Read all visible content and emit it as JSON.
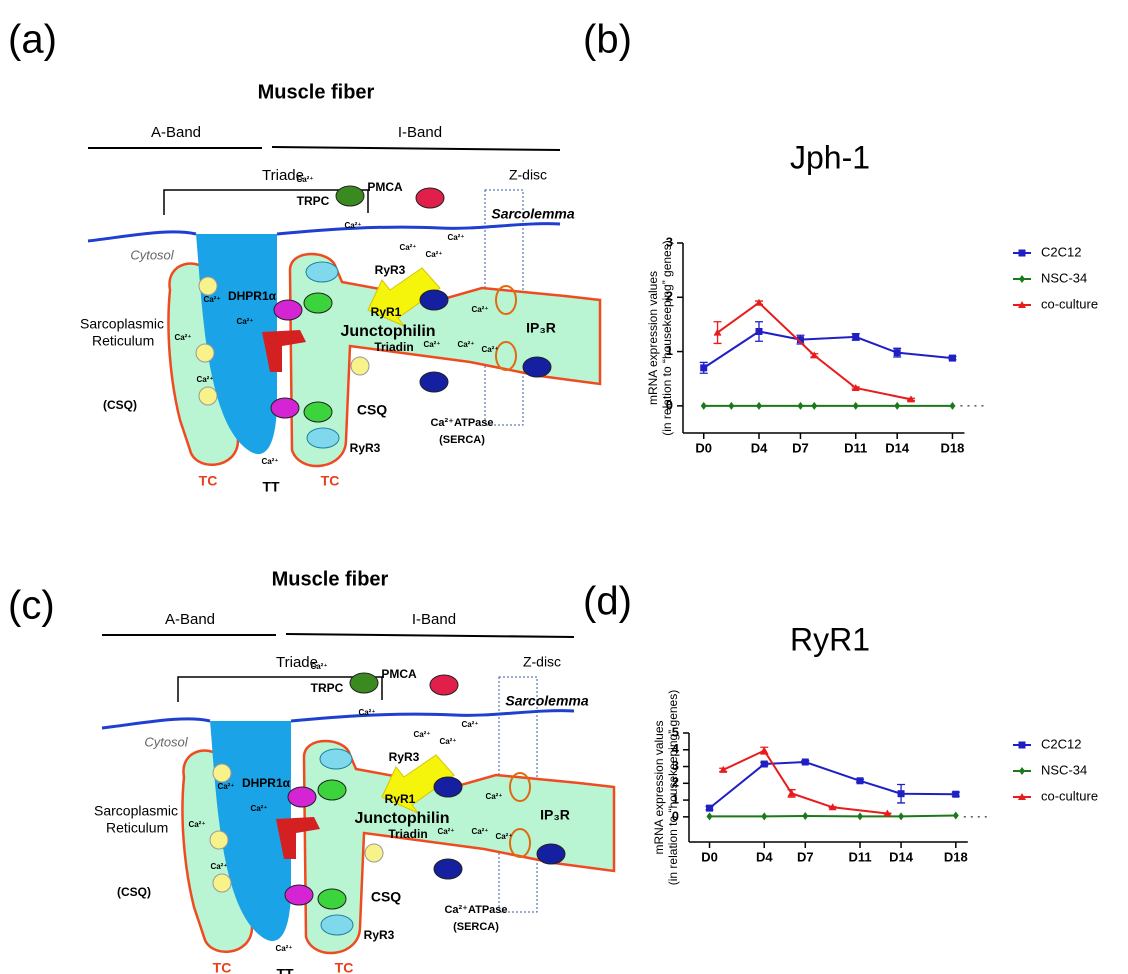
{
  "panel_labels": [
    "(a)",
    "(b)",
    "(c)",
    "(d)"
  ],
  "diagrams": [
    {
      "title": "Muscle fiber",
      "a_band": "A-Band",
      "i_band": "I-Band",
      "triade": "Triade",
      "z_disc": "Z-disc",
      "sarcolemma": "Sarcolemma",
      "cytosol": "Cytosol",
      "sr_line1": "Sarcoplasmic",
      "sr_line2": "Reticulum",
      "dhpr": "DHPR1α",
      "ryr3_top": "RyR3",
      "ryr1": "RyR1",
      "junctophilin": "Junctophilin",
      "triadin": "Triadin",
      "csq": "CSQ",
      "csq_paren": "(CSQ)",
      "ryr3_bottom": "RyR3",
      "tc_left": "TC",
      "tt": "TT",
      "tc_right": "TC",
      "pmca": "PMCA",
      "trpc": "TRPC",
      "ip3r": "IP₃R",
      "serca_line1": "Ca²⁺ATPase",
      "serca_line2": "(SERCA)",
      "calcium": "Ca²⁺"
    },
    {
      "title": "Muscle fiber",
      "a_band": "A-Band",
      "i_band": "I-Band",
      "triade": "Triade",
      "z_disc": "Z-disc",
      "sarcolemma": "Sarcolemma",
      "cytosol": "Cytosol",
      "sr_line1": "Sarcoplasmic",
      "sr_line2": "Reticulum",
      "dhpr": "DHPR1α",
      "ryr3_top": "RyR3",
      "ryr1": "RyR1",
      "junctophilin": "Junctophilin",
      "triadin": "Triadin",
      "csq": "CSQ",
      "csq_paren": "(CSQ)",
      "ryr3_bottom": "RyR3",
      "tc_left": "TC",
      "tt": "TT",
      "tc_right": "TC",
      "pmca": "PMCA",
      "trpc": "TRPC",
      "ip3r": "IP₃R",
      "serca_line1": "Ca²⁺ATPase",
      "serca_line2": "(SERCA)",
      "calcium": "Ca²⁺"
    }
  ],
  "chart_data": [
    {
      "type": "line",
      "title": "Jph-1",
      "y_label": [
        "mRNA expression values",
        "(in relation to “housekeeping” genes)"
      ],
      "xlim": [
        -1.5,
        20.5
      ],
      "ylim": [
        -0.5,
        3
      ],
      "yticks": [
        0,
        1,
        2,
        3
      ],
      "xticks": [
        {
          "value": 0,
          "label": "D0"
        },
        {
          "value": 4,
          "label": "D4"
        },
        {
          "value": 7,
          "label": "D7"
        },
        {
          "value": 11,
          "label": "D11"
        },
        {
          "value": 14,
          "label": "D14"
        },
        {
          "value": 18,
          "label": "D18"
        }
      ],
      "series": [
        {
          "name": "C2C12",
          "color": "#1f1fc4",
          "marker": "square",
          "x": [
            0,
            4,
            7,
            11,
            14,
            18
          ],
          "values": [
            0.7,
            1.37,
            1.22,
            1.27,
            0.98,
            0.88
          ],
          "errors": [
            0.1,
            0.18,
            0.08,
            0.06,
            0.08,
            0.03
          ]
        },
        {
          "name": "NSC-34",
          "color": "#1a7a1a",
          "marker": "diamond",
          "x": [
            0,
            2,
            4,
            7,
            8,
            11,
            14,
            18
          ],
          "values": [
            0,
            0,
            0,
            0,
            0,
            0,
            0,
            0
          ]
        },
        {
          "name": "co-culture",
          "color": "#e81c1c",
          "marker": "triangle",
          "x": [
            1,
            4,
            8,
            11,
            15
          ],
          "values": [
            1.35,
            1.9,
            0.93,
            0.33,
            0.12
          ],
          "errors": [
            0.2,
            0.03,
            0.03,
            0.02,
            0.02
          ]
        }
      ]
    },
    {
      "type": "line",
      "title": "RyR1",
      "y_label": [
        "mRNA expression values",
        "(in relation to “housekeeping” genes)"
      ],
      "xlim": [
        -1.5,
        20.5
      ],
      "ylim": [
        -1.5,
        5
      ],
      "yticks": [
        0,
        1,
        2,
        3,
        4,
        5
      ],
      "xticks": [
        {
          "value": 0,
          "label": "D0"
        },
        {
          "value": 4,
          "label": "D4"
        },
        {
          "value": 7,
          "label": "D7"
        },
        {
          "value": 11,
          "label": "D11"
        },
        {
          "value": 14,
          "label": "D14"
        },
        {
          "value": 18,
          "label": "D18"
        }
      ],
      "series": [
        {
          "name": "C2C12",
          "color": "#1f1fc4",
          "marker": "square",
          "x": [
            0,
            4,
            7,
            11,
            14,
            18
          ],
          "values": [
            0.52,
            3.15,
            3.27,
            2.15,
            1.38,
            1.35
          ],
          "errors": [
            0.1,
            0.1,
            0.08,
            0.08,
            0.55,
            0.12
          ]
        },
        {
          "name": "NSC-34",
          "color": "#1a7a1a",
          "marker": "diamond",
          "x": [
            0,
            4,
            7,
            11,
            14,
            18
          ],
          "values": [
            0.03,
            0.03,
            0.05,
            0.03,
            0.03,
            0.08
          ]
        },
        {
          "name": "co-culture",
          "color": "#e81c1c",
          "marker": "triangle",
          "x": [
            1,
            4,
            6,
            9,
            13
          ],
          "values": [
            2.8,
            3.95,
            1.4,
            0.57,
            0.2
          ],
          "errors": [
            0.1,
            0.2,
            0.22,
            0.03,
            0.02
          ]
        }
      ]
    }
  ]
}
